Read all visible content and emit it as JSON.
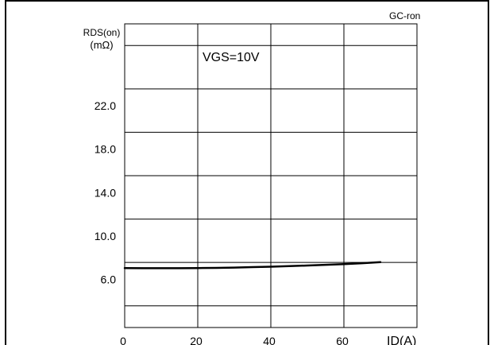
{
  "chart_data": {
    "type": "line",
    "corner_label": "GC-ron",
    "ylabel_line1": "RDS(on)",
    "ylabel_line2": "(mΩ)",
    "xlabel": "ID(A)",
    "annotation": "VGS=10V",
    "xlim": [
      0,
      80
    ],
    "ylim": [
      2.0,
      30.0
    ],
    "x_ticks": [
      0,
      20,
      40,
      60
    ],
    "y_ticks": [
      6.0,
      10.0,
      14.0,
      18.0,
      22.0
    ],
    "y_tick_labels": [
      "6.0",
      "10.0",
      "14.0",
      "18.0",
      "22.0"
    ],
    "grid": true,
    "series": [
      {
        "x": [
          0,
          5,
          10,
          15,
          20,
          25,
          30,
          35,
          40,
          45,
          50,
          55,
          60,
          65,
          70
        ],
        "y": [
          7.48,
          7.47,
          7.47,
          7.47,
          7.48,
          7.5,
          7.53,
          7.57,
          7.61,
          7.66,
          7.72,
          7.78,
          7.85,
          7.93,
          8.03
        ]
      }
    ]
  }
}
